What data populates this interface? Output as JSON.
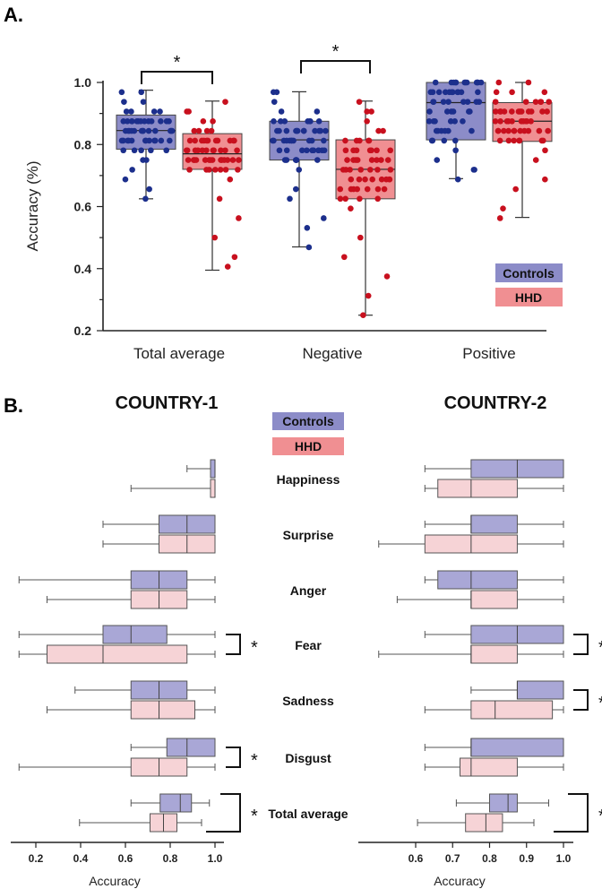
{
  "panel_a_letter": "A.",
  "panel_b_letter": "B.",
  "colors": {
    "controls_box": "#8c8cc8",
    "controls_dot": "#1c2f8c",
    "hhd_box": "#f08f92",
    "hhd_dot": "#c8101e",
    "controls_light": "#a9a7d6",
    "hhd_light": "#f6d3d6"
  },
  "chart_data": [
    {
      "type": "box",
      "panel": "A",
      "title": "",
      "xlabel": "",
      "ylabel": "Accuracy (%)",
      "ylim": [
        0.2,
        1.0
      ],
      "yticks": [
        "0.2",
        "0.4",
        "0.6",
        "0.8",
        "1.0"
      ],
      "categories": [
        "Total average",
        "Negative",
        "Positive"
      ],
      "legend": [
        "Controls",
        "HHD"
      ],
      "series": [
        {
          "name": "Controls",
          "boxes": [
            {
              "min": 0.625,
              "q1": 0.785,
              "median": 0.845,
              "q3": 0.895,
              "max": 0.975
            },
            {
              "min": 0.47,
              "q1": 0.75,
              "median": 0.815,
              "q3": 0.875,
              "max": 0.97
            },
            {
              "min": 0.69,
              "q1": 0.815,
              "median": 0.935,
              "q3": 1.0,
              "max": 1.0
            }
          ]
        },
        {
          "name": "HHD",
          "boxes": [
            {
              "min": 0.395,
              "q1": 0.72,
              "median": 0.77,
              "q3": 0.835,
              "max": 0.94
            },
            {
              "min": 0.25,
              "q1": 0.625,
              "median": 0.72,
              "q3": 0.815,
              "max": 0.94
            },
            {
              "min": 0.565,
              "q1": 0.81,
              "median": 0.875,
              "q3": 0.935,
              "max": 1.0
            }
          ]
        }
      ],
      "significance": [
        {
          "category": "Total average",
          "label": "*"
        },
        {
          "category": "Negative",
          "label": "*"
        }
      ]
    },
    {
      "type": "box",
      "panel": "B",
      "title": "COUNTRY-1",
      "xlabel": "Accuracy",
      "xlim": [
        0.1,
        1.0
      ],
      "xticks": [
        "0.2",
        "0.4",
        "0.6",
        "0.8",
        "1.0"
      ],
      "categories": [
        "Happiness",
        "Surprise",
        "Anger",
        "Fear",
        "Sadness",
        "Disgust",
        "Total average"
      ],
      "series": [
        {
          "name": "Controls",
          "boxes": [
            {
              "min": 0.875,
              "q1": 0.98,
              "median": 1.0,
              "q3": 1.0,
              "max": 1.0
            },
            {
              "min": 0.5,
              "q1": 0.75,
              "median": 0.875,
              "q3": 1.0,
              "max": 1.0
            },
            {
              "min": 0.125,
              "q1": 0.625,
              "median": 0.75,
              "q3": 0.875,
              "max": 1.0
            },
            {
              "min": 0.125,
              "q1": 0.5,
              "median": 0.625,
              "q3": 0.785,
              "max": 1.0
            },
            {
              "min": 0.375,
              "q1": 0.625,
              "median": 0.75,
              "q3": 0.875,
              "max": 1.0
            },
            {
              "min": 0.625,
              "q1": 0.785,
              "median": 0.875,
              "q3": 1.0,
              "max": 1.0
            },
            {
              "min": 0.625,
              "q1": 0.755,
              "median": 0.845,
              "q3": 0.895,
              "max": 0.975
            }
          ]
        },
        {
          "name": "HHD",
          "boxes": [
            {
              "min": 0.625,
              "q1": 0.98,
              "median": 1.0,
              "q3": 1.0,
              "max": 1.0
            },
            {
              "min": 0.5,
              "q1": 0.75,
              "median": 0.875,
              "q3": 1.0,
              "max": 1.0
            },
            {
              "min": 0.25,
              "q1": 0.625,
              "median": 0.75,
              "q3": 0.875,
              "max": 1.0
            },
            {
              "min": 0.125,
              "q1": 0.25,
              "median": 0.5,
              "q3": 0.875,
              "max": 1.0
            },
            {
              "min": 0.25,
              "q1": 0.625,
              "median": 0.75,
              "q3": 0.91,
              "max": 1.0
            },
            {
              "min": 0.125,
              "q1": 0.625,
              "median": 0.75,
              "q3": 0.875,
              "max": 1.0
            },
            {
              "min": 0.395,
              "q1": 0.71,
              "median": 0.77,
              "q3": 0.83,
              "max": 0.94
            }
          ]
        }
      ],
      "significance": [
        {
          "category": "Fear",
          "label": "*"
        },
        {
          "category": "Disgust",
          "label": "*"
        },
        {
          "category": "Total average",
          "label": "*"
        }
      ]
    },
    {
      "type": "box",
      "panel": "B",
      "title": "COUNTRY-2",
      "xlabel": "Accuracy",
      "xlim": [
        0.46,
        1.0
      ],
      "xticks": [
        "0.6",
        "0.7",
        "0.8",
        "0.9",
        "1.0"
      ],
      "categories": [
        "Happiness",
        "Surprise",
        "Anger",
        "Fear",
        "Sadness",
        "Disgust",
        "Total average"
      ],
      "series": [
        {
          "name": "Controls",
          "boxes": [
            {
              "min": 0.625,
              "q1": 0.75,
              "median": 0.875,
              "q3": 1.0,
              "max": 1.0
            },
            {
              "min": 0.625,
              "q1": 0.75,
              "median": 0.75,
              "q3": 0.875,
              "max": 1.0
            },
            {
              "min": 0.625,
              "q1": 0.66,
              "median": 0.75,
              "q3": 0.875,
              "max": 1.0
            },
            {
              "min": 0.625,
              "q1": 0.75,
              "median": 0.875,
              "q3": 1.0,
              "max": 1.0
            },
            {
              "min": 0.75,
              "q1": 0.875,
              "median": 0.875,
              "q3": 1.0,
              "max": 1.0
            },
            {
              "min": 0.625,
              "q1": 0.75,
              "median": 0.75,
              "q3": 1.0,
              "max": 1.0
            },
            {
              "min": 0.71,
              "q1": 0.8,
              "median": 0.85,
              "q3": 0.875,
              "max": 0.96
            }
          ]
        },
        {
          "name": "HHD",
          "boxes": [
            {
              "min": 0.625,
              "q1": 0.66,
              "median": 0.75,
              "q3": 0.875,
              "max": 1.0
            },
            {
              "min": 0.5,
              "q1": 0.625,
              "median": 0.75,
              "q3": 0.875,
              "max": 1.0
            },
            {
              "min": 0.55,
              "q1": 0.75,
              "median": 0.75,
              "q3": 0.875,
              "max": 1.0
            },
            {
              "min": 0.5,
              "q1": 0.75,
              "median": 0.75,
              "q3": 0.875,
              "max": 1.0
            },
            {
              "min": 0.625,
              "q1": 0.75,
              "median": 0.815,
              "q3": 0.97,
              "max": 1.0
            },
            {
              "min": 0.625,
              "q1": 0.72,
              "median": 0.75,
              "q3": 0.875,
              "max": 1.0
            },
            {
              "min": 0.605,
              "q1": 0.735,
              "median": 0.79,
              "q3": 0.835,
              "max": 0.92
            }
          ]
        }
      ],
      "significance": [
        {
          "category": "Fear",
          "label": "*"
        },
        {
          "category": "Sadness",
          "label": "*"
        },
        {
          "category": "Total average",
          "label": "*"
        }
      ]
    }
  ]
}
